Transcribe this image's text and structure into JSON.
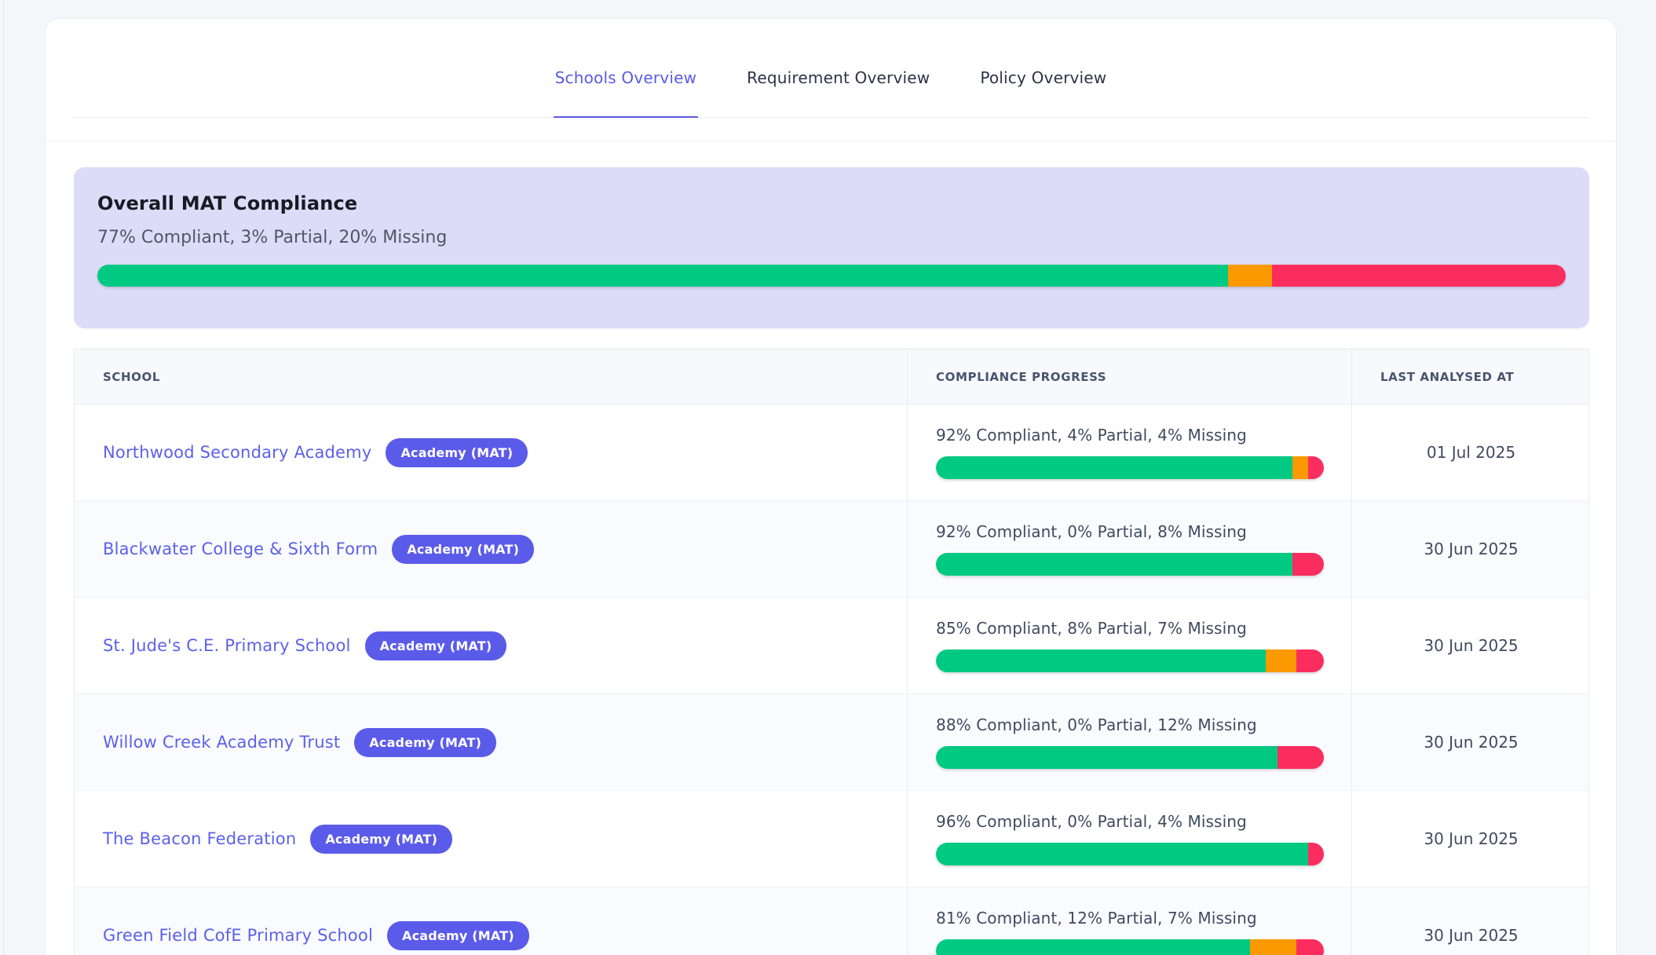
{
  "tabs": [
    {
      "label": "Schools Overview",
      "active": true
    },
    {
      "label": "Requirement Overview",
      "active": false
    },
    {
      "label": "Policy Overview",
      "active": false
    }
  ],
  "summary": {
    "title": "Overall MAT Compliance",
    "subtitle": "77% Compliant, 3% Partial, 20% Missing",
    "bar": {
      "compliant": 77,
      "partial": 3,
      "missing": 20
    }
  },
  "table": {
    "headers": [
      "School",
      "Compliance Progress",
      "Last Analysed At"
    ],
    "rows": [
      {
        "school": "Northwood Secondary Academy",
        "badge": "Academy (MAT)",
        "progress_label": "92% Compliant, 4% Partial, 4% Missing",
        "bar": {
          "compliant": 92,
          "partial": 4,
          "missing": 4
        },
        "last_analysed": "01 Jul 2025"
      },
      {
        "school": "Blackwater College & Sixth Form",
        "badge": "Academy (MAT)",
        "progress_label": "92% Compliant, 0% Partial, 8% Missing",
        "bar": {
          "compliant": 92,
          "partial": 0,
          "missing": 8
        },
        "last_analysed": "30 Jun 2025"
      },
      {
        "school": "St. Jude's C.E. Primary School",
        "badge": "Academy (MAT)",
        "progress_label": "85% Compliant, 8% Partial, 7% Missing",
        "bar": {
          "compliant": 85,
          "partial": 8,
          "missing": 7
        },
        "last_analysed": "30 Jun 2025"
      },
      {
        "school": "Willow Creek Academy Trust",
        "badge": "Academy (MAT)",
        "progress_label": "88% Compliant, 0% Partial, 12% Missing",
        "bar": {
          "compliant": 88,
          "partial": 0,
          "missing": 12
        },
        "last_analysed": "30 Jun 2025"
      },
      {
        "school": "The Beacon Federation",
        "badge": "Academy (MAT)",
        "progress_label": "96% Compliant, 0% Partial, 4% Missing",
        "bar": {
          "compliant": 96,
          "partial": 0,
          "missing": 4
        },
        "last_analysed": "30 Jun 2025"
      },
      {
        "school": "Green Field CofE Primary School",
        "badge": "Academy (MAT)",
        "progress_label": "81% Compliant, 12% Partial, 7% Missing",
        "bar": {
          "compliant": 81,
          "partial": 12,
          "missing": 7
        },
        "last_analysed": "30 Jun 2025"
      }
    ]
  },
  "colors": {
    "accent": "#5A5BE3",
    "link": "#5B61E9",
    "badge": "#5B5BEA",
    "green": "#00C982",
    "orange": "#FB9900",
    "pink": "#FB2D5E",
    "lavender": "#DCDCF8",
    "border": "#E9EBF2",
    "tab_inactive": "#2A3447"
  }
}
